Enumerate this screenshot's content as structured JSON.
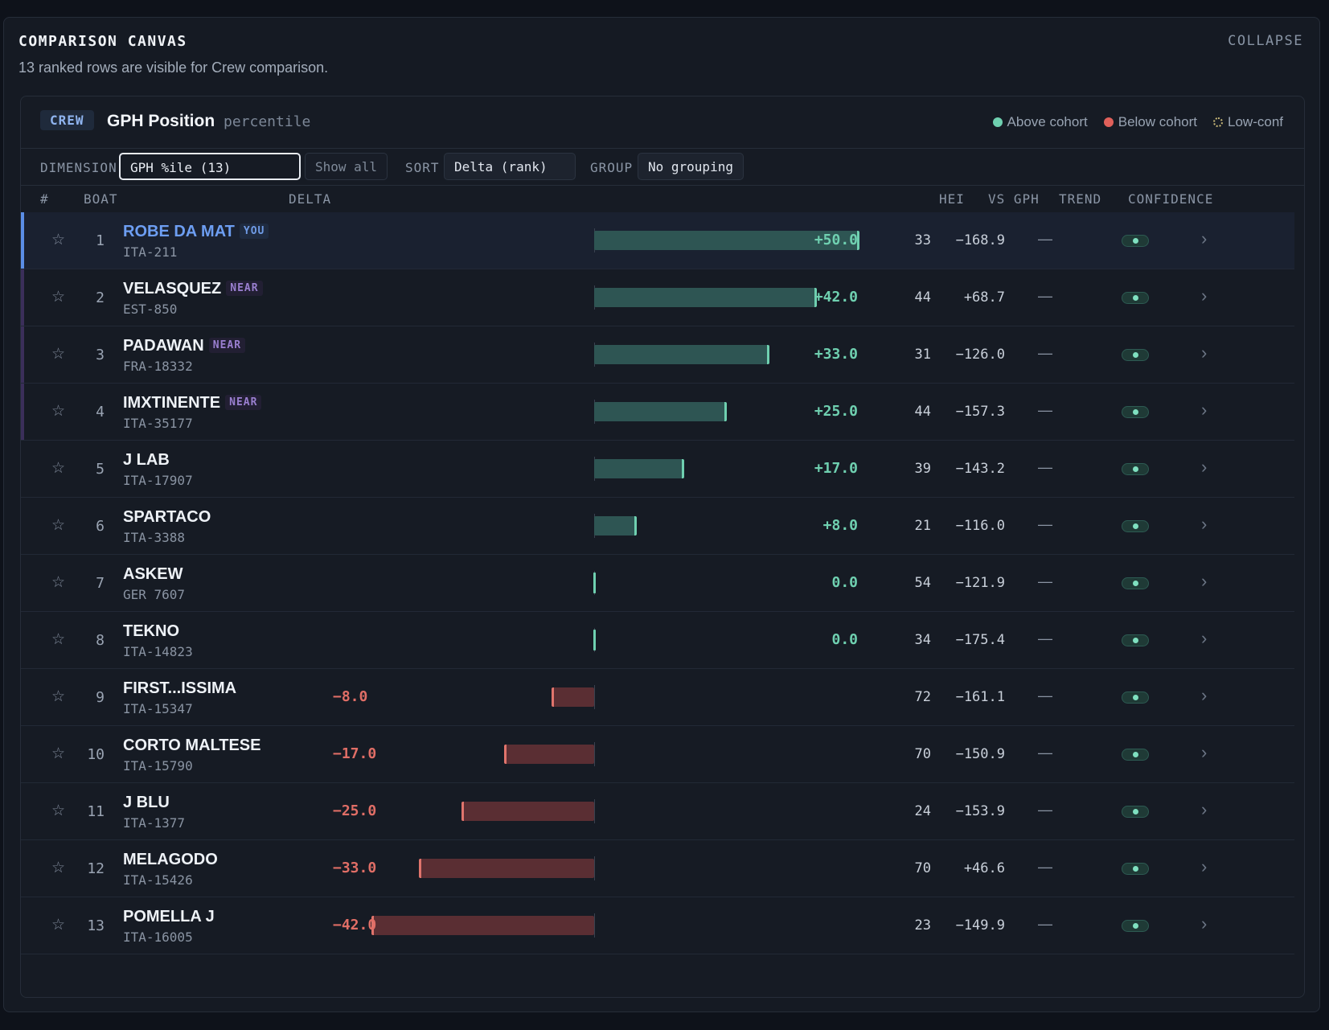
{
  "canvas": {
    "title": "COMPARISON CANVAS",
    "subtitle": "13 ranked rows are visible for Crew comparison.",
    "collapse_label": "COLLAPSE"
  },
  "panel": {
    "badge": "CREW",
    "title": "GPH Position",
    "unit": "percentile",
    "legend": [
      {
        "label": "Above cohort",
        "color": "#6fd0b0"
      },
      {
        "label": "Below cohort",
        "color": "#e0605a"
      },
      {
        "label": "Low-conf",
        "color": "#c8b878"
      }
    ]
  },
  "controls": {
    "dimension_label": "DIMENSION",
    "dimension_value": "GPH %ile (13)",
    "show_all": "Show all",
    "sort_label": "SORT",
    "sort_value": "Delta (rank)",
    "group_label": "GROUP",
    "group_value": "No grouping"
  },
  "columns": {
    "rank": "#",
    "boat": "BOAT",
    "delta": "DELTA",
    "hei": "HEI",
    "vs_gph": "VS GPH",
    "trend": "TREND",
    "confidence": "CONFIDENCE"
  },
  "delta_max": 50,
  "rows": [
    {
      "rank": "1",
      "name": "ROBE DA MAT",
      "tag": "YOU",
      "id": "ITA-211",
      "delta": 50.0,
      "delta_label": "+50.0",
      "hei": "33",
      "vs_gph": "−168.9",
      "trend": "—"
    },
    {
      "rank": "2",
      "name": "VELASQUEZ",
      "tag": "NEAR",
      "id": "EST-850",
      "delta": 42.0,
      "delta_label": "+42.0",
      "hei": "44",
      "vs_gph": "+68.7",
      "trend": "—"
    },
    {
      "rank": "3",
      "name": "PADAWAN",
      "tag": "NEAR",
      "id": "FRA-18332",
      "delta": 33.0,
      "delta_label": "+33.0",
      "hei": "31",
      "vs_gph": "−126.0",
      "trend": "—"
    },
    {
      "rank": "4",
      "name": "IMXTINENTE",
      "tag": "NEAR",
      "id": "ITA-35177",
      "delta": 25.0,
      "delta_label": "+25.0",
      "hei": "44",
      "vs_gph": "−157.3",
      "trend": "—"
    },
    {
      "rank": "5",
      "name": "J LAB",
      "tag": "",
      "id": "ITA-17907",
      "delta": 17.0,
      "delta_label": "+17.0",
      "hei": "39",
      "vs_gph": "−143.2",
      "trend": "—"
    },
    {
      "rank": "6",
      "name": "SPARTACO",
      "tag": "",
      "id": "ITA-3388",
      "delta": 8.0,
      "delta_label": "+8.0",
      "hei": "21",
      "vs_gph": "−116.0",
      "trend": "—"
    },
    {
      "rank": "7",
      "name": "ASKEW",
      "tag": "",
      "id": "GER 7607",
      "delta": 0.0,
      "delta_label": "0.0",
      "hei": "54",
      "vs_gph": "−121.9",
      "trend": "—"
    },
    {
      "rank": "8",
      "name": "TEKNO",
      "tag": "",
      "id": "ITA-14823",
      "delta": 0.0,
      "delta_label": "0.0",
      "hei": "34",
      "vs_gph": "−175.4",
      "trend": "—"
    },
    {
      "rank": "9",
      "name": "FIRST...ISSIMA",
      "tag": "",
      "id": "ITA-15347",
      "delta": -8.0,
      "delta_label": "−8.0",
      "hei": "72",
      "vs_gph": "−161.1",
      "trend": "—"
    },
    {
      "rank": "10",
      "name": "CORTO MALTESE",
      "tag": "",
      "id": "ITA-15790",
      "delta": -17.0,
      "delta_label": "−17.0",
      "hei": "70",
      "vs_gph": "−150.9",
      "trend": "—"
    },
    {
      "rank": "11",
      "name": "J BLU",
      "tag": "",
      "id": "ITA-1377",
      "delta": -25.0,
      "delta_label": "−25.0",
      "hei": "24",
      "vs_gph": "−153.9",
      "trend": "—"
    },
    {
      "rank": "12",
      "name": "MELAGODO",
      "tag": "",
      "id": "ITA-15426",
      "delta": -33.0,
      "delta_label": "−33.0",
      "hei": "70",
      "vs_gph": "+46.6",
      "trend": "—"
    },
    {
      "rank": "13",
      "name": "POMELLA J",
      "tag": "",
      "id": "ITA-16005",
      "delta": -42.0,
      "delta_label": "−42.0",
      "hei": "23",
      "vs_gph": "−149.9",
      "trend": "—"
    }
  ]
}
